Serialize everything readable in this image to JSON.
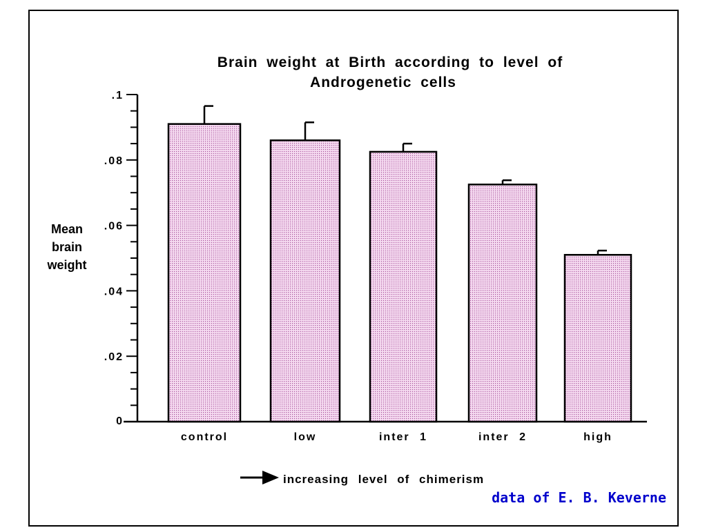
{
  "chart_data": {
    "type": "bar",
    "title": "Brain weight at Birth according to level of Androgenetic cells",
    "title_lines": [
      "Brain weight at Birth according to level of",
      "Androgenetic cells"
    ],
    "ylabel_lines": [
      "Mean",
      "brain",
      "weight"
    ],
    "xlabel": "",
    "categories": [
      "control",
      "low",
      "inter 1",
      "inter 2",
      "high"
    ],
    "values": [
      0.091,
      0.086,
      0.0825,
      0.0725,
      0.051
    ],
    "error": [
      0.0055,
      0.0055,
      0.0025,
      0.0013,
      0.0013
    ],
    "ylim": [
      0,
      0.1
    ],
    "yticks": [
      0,
      0.02,
      0.04,
      0.06,
      0.08,
      0.1
    ],
    "ytick_labels": [
      "0",
      ".02",
      ".04",
      ".06",
      ".08",
      ".1"
    ],
    "grid": false,
    "bar_color": "#f0c8ea",
    "bar_pattern_color": "#a8549c",
    "bar_edge_color": "#000000",
    "annotation": "increasing level of chimerism",
    "credit": "data of E. B. Keverne",
    "credit_color": "#0000cc"
  }
}
